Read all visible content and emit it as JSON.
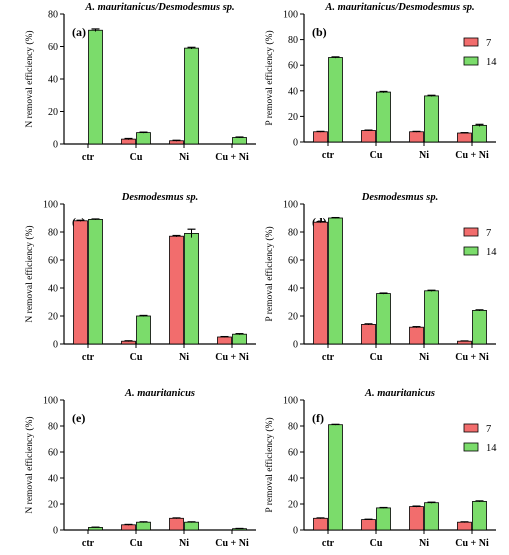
{
  "colors": {
    "day7": "#f26d6d",
    "day14": "#7bdc6b",
    "axis": "#000000",
    "error": "#000000"
  },
  "chart_data": [
    {
      "id": "a",
      "type": "bar",
      "panel_label": "(a)",
      "title": "A. mauritanicus/Desmodesmus sp.",
      "ylabel": "N removal efficiency (%)",
      "ylim": [
        0,
        80
      ],
      "yticks": [
        0,
        20,
        40,
        60,
        80
      ],
      "categories": [
        "ctr",
        "Cu",
        "Ni",
        "Cu + Ni"
      ],
      "legend": false,
      "series": [
        {
          "name": "7",
          "values": [
            0,
            3,
            2,
            0
          ],
          "errors": [
            0,
            0.4,
            0.3,
            0
          ]
        },
        {
          "name": "14",
          "values": [
            70,
            7,
            59,
            4
          ],
          "errors": [
            0.8,
            0.3,
            0.5,
            0.3
          ]
        }
      ]
    },
    {
      "id": "b",
      "type": "bar",
      "panel_label": "(b)",
      "title": "A. mauritanicus/Desmodesmus sp.",
      "ylabel": "P removal efficiency (%)",
      "ylim": [
        0,
        100
      ],
      "yticks": [
        0,
        20,
        40,
        60,
        80,
        100
      ],
      "categories": [
        "ctr",
        "Cu",
        "Ni",
        "Cu + Ni"
      ],
      "legend": true,
      "series": [
        {
          "name": "7",
          "values": [
            8,
            9,
            8,
            7
          ],
          "errors": [
            0.3,
            0.3,
            0.3,
            0.3
          ]
        },
        {
          "name": "14",
          "values": [
            66,
            39,
            36,
            13
          ],
          "errors": [
            0.5,
            0.5,
            0.5,
            0.8
          ]
        }
      ]
    },
    {
      "id": "c",
      "type": "bar",
      "panel_label": "(c)",
      "title": "Desmodesmus sp.",
      "ylabel": "N removal efficiency (%)",
      "ylim": [
        0,
        100
      ],
      "yticks": [
        0,
        20,
        40,
        60,
        80,
        100
      ],
      "categories": [
        "ctr",
        "Cu",
        "Ni",
        "Cu + Ni"
      ],
      "legend": false,
      "series": [
        {
          "name": "7",
          "values": [
            88,
            2,
            77,
            5
          ],
          "errors": [
            0.4,
            0.3,
            0.5,
            0.3
          ]
        },
        {
          "name": "14",
          "values": [
            89,
            20,
            79,
            7
          ],
          "errors": [
            0.3,
            0.4,
            3,
            0.4
          ]
        }
      ]
    },
    {
      "id": "d",
      "type": "bar",
      "panel_label": "(d)",
      "title": "Desmodesmus sp.",
      "ylabel": "P removal efficiency (%)",
      "ylim": [
        0,
        100
      ],
      "yticks": [
        0,
        20,
        40,
        60,
        80,
        100
      ],
      "categories": [
        "ctr",
        "Cu",
        "Ni",
        "Cu + Ni"
      ],
      "legend": true,
      "series": [
        {
          "name": "7",
          "values": [
            87,
            14,
            12,
            2
          ],
          "errors": [
            0.4,
            0.4,
            0.4,
            0.2
          ]
        },
        {
          "name": "14",
          "values": [
            90,
            36,
            38,
            24
          ],
          "errors": [
            0.3,
            0.4,
            0.4,
            0.4
          ]
        }
      ]
    },
    {
      "id": "e",
      "type": "bar",
      "panel_label": "(e)",
      "title": "A. mauritanicus",
      "ylabel": "N removal efficiency (%)",
      "ylim": [
        0,
        100
      ],
      "yticks": [
        0,
        20,
        40,
        60,
        80,
        100
      ],
      "categories": [
        "ctr",
        "Cu",
        "Ni",
        "Cu + Ni"
      ],
      "legend": false,
      "series": [
        {
          "name": "7",
          "values": [
            0,
            4,
            9,
            0
          ],
          "errors": [
            0,
            0.3,
            0.3,
            0
          ]
        },
        {
          "name": "14",
          "values": [
            2,
            6,
            6,
            1
          ],
          "errors": [
            0.2,
            0.3,
            0.3,
            0.2
          ]
        }
      ]
    },
    {
      "id": "f",
      "type": "bar",
      "panel_label": "(f)",
      "title": "A. mauritanicus",
      "ylabel": "P removal efficiency (%)",
      "ylim": [
        0,
        100
      ],
      "yticks": [
        0,
        20,
        40,
        60,
        80,
        100
      ],
      "categories": [
        "ctr",
        "Cu",
        "Ni",
        "Cu + Ni"
      ],
      "legend": true,
      "series": [
        {
          "name": "7",
          "values": [
            9,
            8,
            18,
            6
          ],
          "errors": [
            0.3,
            0.3,
            0.4,
            0.3
          ]
        },
        {
          "name": "14",
          "values": [
            81,
            17,
            21,
            22
          ],
          "errors": [
            0.3,
            0.3,
            0.4,
            0.4
          ]
        }
      ]
    }
  ]
}
